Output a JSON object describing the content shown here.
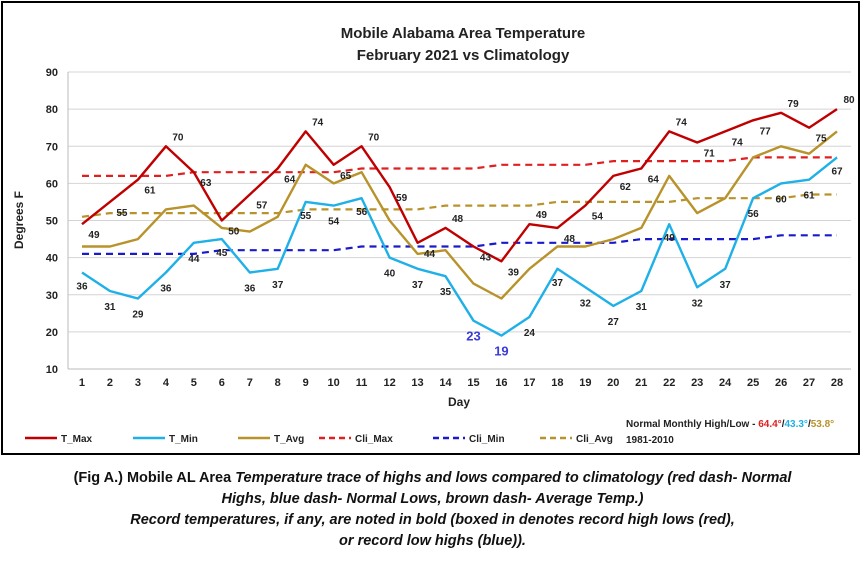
{
  "chart_data": {
    "type": "line",
    "title": "Mobile Alabama Area Temperature",
    "subtitle": "February 2021 vs Climatology",
    "xlabel": "Day",
    "ylabel": "Degrees F",
    "ylim": [
      10,
      90
    ],
    "yticks": [
      10,
      20,
      30,
      40,
      50,
      60,
      70,
      80,
      90
    ],
    "x": [
      1,
      2,
      3,
      4,
      5,
      6,
      7,
      8,
      9,
      10,
      11,
      12,
      13,
      14,
      15,
      16,
      17,
      18,
      19,
      20,
      21,
      22,
      23,
      24,
      25,
      26,
      27,
      28
    ],
    "grid": true,
    "series": [
      {
        "name": "T_Max",
        "color": "#c00000",
        "style": "solid",
        "values": [
          49,
          55,
          61,
          70,
          63,
          50,
          57,
          64,
          74,
          65,
          70,
          59,
          44,
          48,
          43,
          39,
          49,
          48,
          54,
          62,
          64,
          74,
          71,
          74,
          77,
          79,
          75,
          80
        ]
      },
      {
        "name": "T_Min",
        "color": "#1fb0e8",
        "style": "solid",
        "values": [
          36,
          31,
          29,
          36,
          44,
          45,
          36,
          37,
          55,
          54,
          56,
          40,
          37,
          35,
          23,
          19,
          24,
          37,
          32,
          27,
          31,
          49,
          32,
          37,
          56,
          60,
          61,
          67
        ]
      },
      {
        "name": "T_Avg",
        "color": "#b8922a",
        "style": "solid",
        "values": [
          43,
          43,
          45,
          53,
          54,
          48,
          47,
          51,
          65,
          60,
          63,
          50,
          41,
          42,
          33,
          29,
          37,
          43,
          43,
          45,
          48,
          62,
          52,
          56,
          67,
          70,
          68,
          74
        ]
      },
      {
        "name": "Cli_Max",
        "color": "#e02020",
        "style": "dashed",
        "values": [
          62,
          62,
          62,
          62,
          63,
          63,
          63,
          63,
          63,
          63,
          64,
          64,
          64,
          64,
          64,
          65,
          65,
          65,
          65,
          66,
          66,
          66,
          66,
          66,
          67,
          67,
          67,
          67
        ]
      },
      {
        "name": "Cli_Min",
        "color": "#1a1acc",
        "style": "dashed",
        "values": [
          41,
          41,
          41,
          41,
          41,
          42,
          42,
          42,
          42,
          42,
          43,
          43,
          43,
          43,
          43,
          44,
          44,
          44,
          44,
          44,
          45,
          45,
          45,
          45,
          45,
          46,
          46,
          46
        ]
      },
      {
        "name": "Cli_Avg",
        "color": "#b8922a",
        "style": "dashed",
        "values": [
          51,
          52,
          52,
          52,
          52,
          52,
          52,
          52,
          53,
          53,
          53,
          53,
          53,
          54,
          54,
          54,
          54,
          55,
          55,
          55,
          55,
          55,
          56,
          56,
          56,
          56,
          57,
          57
        ]
      }
    ],
    "data_labels": {
      "T_Max": [
        "49",
        "55",
        "61",
        "70",
        "63",
        "50",
        "57",
        "64",
        "74",
        "65",
        "70",
        "59",
        "44",
        "48",
        "43",
        "39",
        "49",
        "48",
        "54",
        "62",
        "64",
        "74",
        "71",
        "74",
        "77",
        "79",
        "75",
        "80"
      ],
      "T_Min": [
        "36",
        "31",
        "29",
        "36",
        "44",
        "45",
        "36",
        "37",
        "55",
        "54",
        "56",
        "40",
        "37",
        "35",
        "23",
        "19",
        "24",
        "37",
        "32",
        "27",
        "31",
        "49",
        "32",
        "37",
        "56",
        "60",
        "61",
        "67"
      ]
    },
    "record_days": [
      15,
      16
    ],
    "legend_position": "bottom",
    "normals_note": {
      "label": "Normal Monthly High/Low - ",
      "high": "64.4°",
      "low": "43.3°",
      "avg": "53.8°",
      "high_color": "#e02020",
      "low_color": "#1fb0e8",
      "avg_color": "#b8922a",
      "period": "1981-2010"
    }
  },
  "caption": {
    "line1_a": "(Fig A.) Mobile AL Area ",
    "line1_b": "Temperature trace of highs and lows compared to climatology (red dash- Normal",
    "line2": "Highs, blue dash- Normal Lows, brown dash- Average Temp.)",
    "line3": "Record temperatures, if any, are noted in bold (boxed in denotes record high lows (red),",
    "line4": "or record low highs (blue))."
  }
}
